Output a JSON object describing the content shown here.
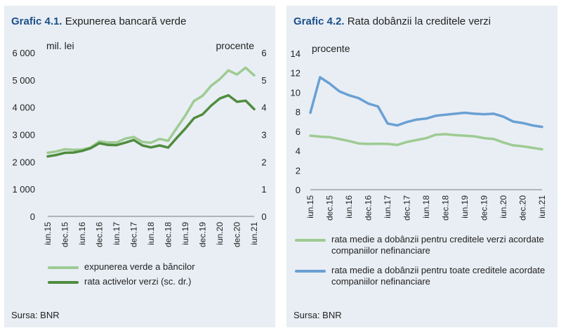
{
  "left": {
    "title_num": "Grafic 4.1.",
    "title_text": "Expunerea bancară verde",
    "source": "Sursa: BNR",
    "unit_left": "mil. lei",
    "unit_right": "procente",
    "legend": [
      "expunerea verde a băncilor",
      "rata activelor verzi (sc. dr.)"
    ]
  },
  "right": {
    "title_num": "Grafic 4.2.",
    "title_text": "Rata dobânzii la creditele verzi",
    "source": "Sursa: BNR",
    "unit": "procente",
    "legend": [
      "rata medie a dobânzii pentru creditele verzi acordate companiilor nefinanciare",
      "rata medie a dobânzii pentru toate creditele acordate companiilor nefinanciare"
    ]
  },
  "colors": {
    "light_green": "#9ecb93",
    "dark_green": "#4f8c3f",
    "light_blue": "#6aa0d4",
    "title_blue": "#1b4f8a"
  },
  "chart_data": [
    {
      "type": "line",
      "title": "Expunerea bancară verde",
      "x_tick_labels": [
        "iun.15",
        "dec.15",
        "iun.16",
        "dec.16",
        "iun.17",
        "dec.17",
        "iun.18",
        "dec.18",
        "iun.19",
        "dec.19",
        "iun.20",
        "dec.20",
        "iun.21"
      ],
      "ylim": [
        0,
        6000
      ],
      "y_ticks": [
        "0",
        "1 000",
        "2 000",
        "3 000",
        "4 000",
        "5 000",
        "6 000"
      ],
      "y2lim": [
        0,
        6
      ],
      "y2_ticks": [
        "0",
        "1",
        "2",
        "3",
        "4",
        "5",
        "6"
      ],
      "series": [
        {
          "name": "expunerea verde a băncilor",
          "axis": "left",
          "values": [
            2330,
            2380,
            2460,
            2440,
            2450,
            2530,
            2750,
            2710,
            2710,
            2850,
            2910,
            2730,
            2700,
            2840,
            2770,
            3240,
            3700,
            4230,
            4420,
            4790,
            5030,
            5350,
            5200,
            5450,
            5170
          ]
        },
        {
          "name": "rata activelor verzi (sc. dr.)",
          "axis": "right",
          "values": [
            2.2,
            2.25,
            2.33,
            2.34,
            2.4,
            2.5,
            2.68,
            2.62,
            2.61,
            2.7,
            2.8,
            2.6,
            2.53,
            2.6,
            2.52,
            2.88,
            3.22,
            3.6,
            3.74,
            4.06,
            4.32,
            4.44,
            4.2,
            4.24,
            3.93
          ]
        }
      ]
    },
    {
      "type": "line",
      "title": "Rata dobânzii la creditele verzi",
      "x_tick_labels": [
        "iun.15",
        "dec.15",
        "iun.16",
        "dec.16",
        "iun.17",
        "dec.17",
        "iun.18",
        "dec.18",
        "iun.19",
        "dec.19",
        "iun.20",
        "dec.20",
        "iun.21"
      ],
      "ylim": [
        0,
        14
      ],
      "y_ticks": [
        "0",
        "2",
        "4",
        "6",
        "8",
        "10",
        "12",
        "14"
      ],
      "series": [
        {
          "name": "rata medie a dobânzii pentru creditele verzi acordate companiilor nefinanciare",
          "values": [
            5.55,
            5.45,
            5.4,
            5.2,
            5.0,
            4.75,
            4.7,
            4.72,
            4.7,
            4.6,
            4.9,
            5.1,
            5.3,
            5.65,
            5.7,
            5.6,
            5.55,
            5.48,
            5.3,
            5.2,
            4.85,
            4.55,
            4.45,
            4.3,
            4.15
          ]
        },
        {
          "name": "rata medie a dobânzii pentru toate creditele acordate companiilor nefinanciare",
          "values": [
            7.9,
            11.55,
            10.9,
            10.1,
            9.7,
            9.4,
            8.85,
            8.55,
            6.8,
            6.6,
            6.95,
            7.2,
            7.3,
            7.6,
            7.7,
            7.8,
            7.9,
            7.8,
            7.75,
            7.8,
            7.5,
            7.0,
            6.85,
            6.6,
            6.45
          ]
        }
      ]
    }
  ]
}
